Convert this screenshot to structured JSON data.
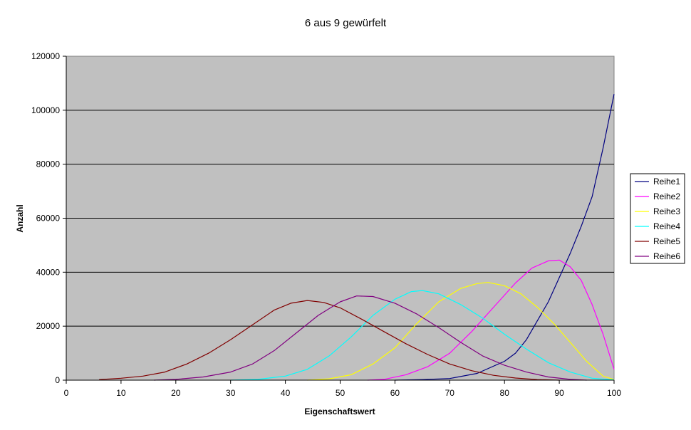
{
  "chart_data": {
    "type": "line",
    "title": "6 aus 9 gewürfelt",
    "xlabel": "Eigenschaftswert",
    "ylabel": "Anzahl",
    "xlim": [
      0,
      100
    ],
    "ylim": [
      0,
      120000
    ],
    "x_ticks": [
      "0",
      "10",
      "20",
      "30",
      "40",
      "50",
      "60",
      "70",
      "80",
      "90",
      "100"
    ],
    "y_ticks": [
      "0",
      "20000",
      "40000",
      "60000",
      "80000",
      "100000",
      "120000"
    ],
    "grid": "horizontal",
    "legend_position": "right",
    "plot_background": "#c0c0c0",
    "series": [
      {
        "name": "Reihe1",
        "color": "#000080",
        "points": [
          [
            60,
            0
          ],
          [
            65,
            200
          ],
          [
            70,
            600
          ],
          [
            75,
            2500
          ],
          [
            80,
            7000
          ],
          [
            82,
            10000
          ],
          [
            84,
            15000
          ],
          [
            86,
            22000
          ],
          [
            88,
            29000
          ],
          [
            90,
            38000
          ],
          [
            92,
            47000
          ],
          [
            94,
            57000
          ],
          [
            96,
            68000
          ],
          [
            98,
            86000
          ],
          [
            100,
            106000
          ]
        ]
      },
      {
        "name": "Reihe2",
        "color": "#ff00ff",
        "points": [
          [
            55,
            0
          ],
          [
            58,
            300
          ],
          [
            62,
            2000
          ],
          [
            66,
            5000
          ],
          [
            70,
            10000
          ],
          [
            74,
            18000
          ],
          [
            78,
            27000
          ],
          [
            82,
            36000
          ],
          [
            85,
            41500
          ],
          [
            88,
            44200
          ],
          [
            90,
            44500
          ],
          [
            92,
            42000
          ],
          [
            94,
            37000
          ],
          [
            96,
            28000
          ],
          [
            98,
            17000
          ],
          [
            100,
            4000
          ]
        ]
      },
      {
        "name": "Reihe3",
        "color": "#ffff00",
        "points": [
          [
            44,
            0
          ],
          [
            48,
            500
          ],
          [
            52,
            2000
          ],
          [
            56,
            6000
          ],
          [
            60,
            12000
          ],
          [
            64,
            21000
          ],
          [
            68,
            29000
          ],
          [
            72,
            34000
          ],
          [
            75,
            35800
          ],
          [
            77,
            36200
          ],
          [
            80,
            35000
          ],
          [
            83,
            32000
          ],
          [
            86,
            27000
          ],
          [
            89,
            21000
          ],
          [
            92,
            14000
          ],
          [
            95,
            7000
          ],
          [
            98,
            1500
          ],
          [
            100,
            200
          ]
        ]
      },
      {
        "name": "Reihe4",
        "color": "#00ffff",
        "points": [
          [
            30,
            0
          ],
          [
            35,
            300
          ],
          [
            40,
            1500
          ],
          [
            44,
            4000
          ],
          [
            48,
            9000
          ],
          [
            52,
            16000
          ],
          [
            56,
            24000
          ],
          [
            60,
            30000
          ],
          [
            63,
            32800
          ],
          [
            65,
            33200
          ],
          [
            68,
            32000
          ],
          [
            72,
            28000
          ],
          [
            76,
            23000
          ],
          [
            80,
            17000
          ],
          [
            84,
            11500
          ],
          [
            88,
            6500
          ],
          [
            92,
            3000
          ],
          [
            96,
            700
          ],
          [
            100,
            100
          ]
        ]
      },
      {
        "name": "Reihe5",
        "color": "#800000",
        "points": [
          [
            6,
            200
          ],
          [
            10,
            700
          ],
          [
            14,
            1500
          ],
          [
            18,
            3000
          ],
          [
            22,
            6000
          ],
          [
            26,
            10000
          ],
          [
            30,
            15000
          ],
          [
            34,
            20500
          ],
          [
            38,
            26000
          ],
          [
            41,
            28500
          ],
          [
            44,
            29500
          ],
          [
            47,
            28800
          ],
          [
            50,
            26800
          ],
          [
            54,
            22500
          ],
          [
            58,
            18000
          ],
          [
            62,
            13500
          ],
          [
            66,
            9500
          ],
          [
            70,
            6000
          ],
          [
            74,
            3500
          ],
          [
            78,
            1800
          ],
          [
            82,
            800
          ],
          [
            86,
            200
          ],
          [
            90,
            0
          ]
        ]
      },
      {
        "name": "Reihe6",
        "color": "#800080",
        "points": [
          [
            16,
            0
          ],
          [
            20,
            300
          ],
          [
            25,
            1200
          ],
          [
            30,
            3000
          ],
          [
            34,
            6000
          ],
          [
            38,
            11000
          ],
          [
            42,
            17500
          ],
          [
            46,
            24000
          ],
          [
            50,
            29000
          ],
          [
            53,
            31200
          ],
          [
            56,
            31000
          ],
          [
            60,
            28500
          ],
          [
            64,
            24500
          ],
          [
            68,
            19500
          ],
          [
            72,
            14000
          ],
          [
            76,
            9000
          ],
          [
            80,
            5500
          ],
          [
            84,
            3000
          ],
          [
            88,
            1200
          ],
          [
            92,
            300
          ],
          [
            95,
            0
          ]
        ]
      }
    ]
  }
}
